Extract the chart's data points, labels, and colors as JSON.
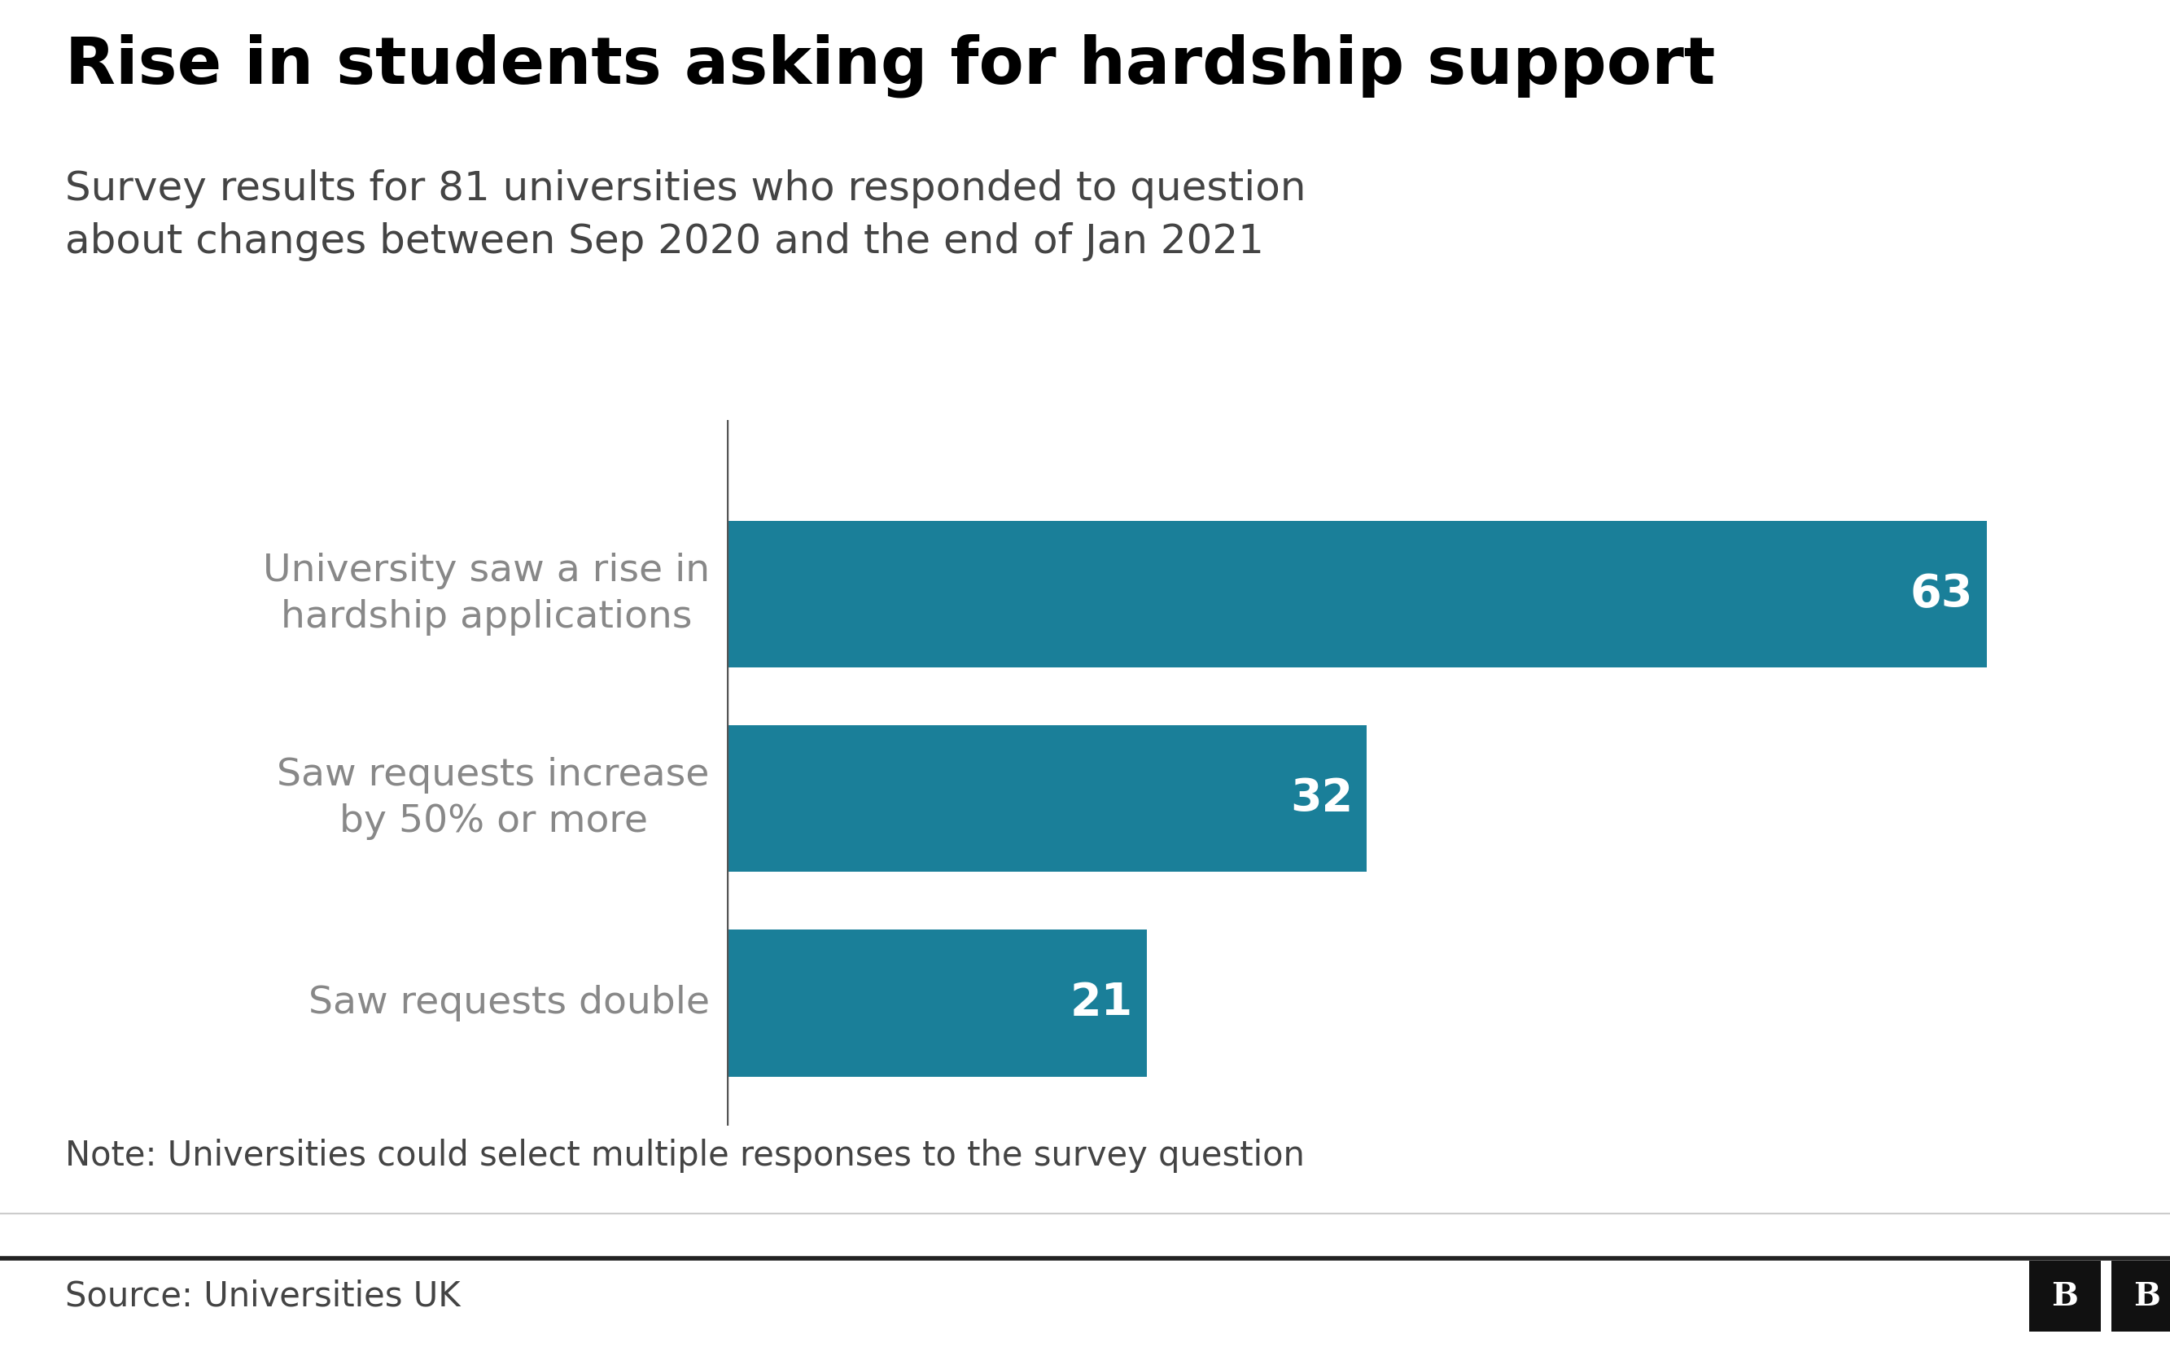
{
  "title": "Rise in students asking for hardship support",
  "subtitle": "Survey results for 81 universities who responded to question\nabout changes between Sep 2020 and the end of Jan 2021",
  "categories": [
    "University saw a rise in\nhardship applications",
    "Saw requests increase\nby 50% or more",
    "Saw requests double"
  ],
  "values": [
    63,
    32,
    21
  ],
  "bar_color": "#1a7f99",
  "label_color": "#888888",
  "value_color": "#ffffff",
  "title_color": "#000000",
  "subtitle_color": "#444444",
  "note_text": "Note: Universities could select multiple responses to the survey question",
  "source_text": "Source: Universities UK",
  "background_color": "#ffffff",
  "title_fontsize": 58,
  "subtitle_fontsize": 36,
  "category_fontsize": 34,
  "value_fontsize": 40,
  "note_fontsize": 30,
  "source_fontsize": 30,
  "xlim": [
    0,
    70
  ]
}
